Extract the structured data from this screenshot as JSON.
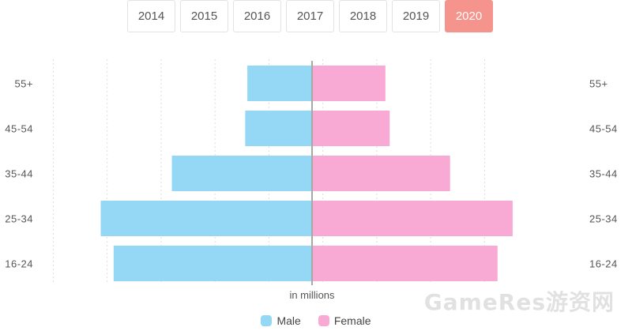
{
  "year_tabs": [
    {
      "label": "2014"
    },
    {
      "label": "2015"
    },
    {
      "label": "2016"
    },
    {
      "label": "2017"
    },
    {
      "label": "2018"
    },
    {
      "label": "2019"
    },
    {
      "label": "2020"
    }
  ],
  "active_year": "2020",
  "colors": {
    "male": "#94d8f6",
    "female": "#f9aad4",
    "active_tab": "#f4948c",
    "center_line": "#a8a8a8",
    "grid": "#dddddd"
  },
  "chart_data": {
    "type": "bar",
    "orientation": "horizontal-population-pyramid",
    "categories": [
      "55+",
      "45-54",
      "35-44",
      "25-34",
      "16-24"
    ],
    "series": [
      {
        "name": "Male",
        "values": [
          3.0,
          3.1,
          6.5,
          9.8,
          9.2
        ]
      },
      {
        "name": "Female",
        "values": [
          3.4,
          3.6,
          6.4,
          9.3,
          8.6
        ]
      }
    ],
    "xlabel": "in millions",
    "xlim": [
      -12,
      12
    ],
    "grid": true,
    "legend_position": "bottom-center"
  },
  "watermark": "GameRes游资网"
}
